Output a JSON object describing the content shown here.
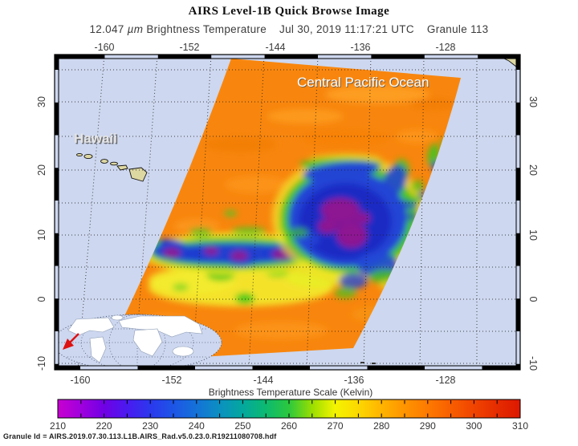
{
  "header": {
    "title": "AIRS Level-1B Quick Browse Image",
    "wavelength": "12.047",
    "unit": "µm",
    "measure": "Brightness Temperature",
    "datetime": "Jul 30, 2019 11:17:21 UTC",
    "granule": "Granule 113"
  },
  "map": {
    "labels": {
      "region": "Central Pacific Ocean",
      "place": "Hawaii"
    },
    "axes": {
      "top": [
        "-160",
        "-152",
        "-144",
        "-136",
        "-128"
      ],
      "bottom": [
        "-160",
        "-152",
        "-144",
        "-136",
        "-128"
      ],
      "left": [
        "30",
        "20",
        "10",
        "0",
        "-10"
      ],
      "right": [
        "30",
        "20",
        "10",
        "0",
        "-10"
      ]
    }
  },
  "colorbar": {
    "title": "Brightness Temperature Scale (Kelvin)",
    "ticks": [
      "210",
      "220",
      "230",
      "240",
      "250",
      "260",
      "270",
      "280",
      "290",
      "300",
      "310"
    ],
    "gradient": [
      {
        "o": 0.0,
        "c": "#c800d0"
      },
      {
        "o": 0.05,
        "c": "#a000dd"
      },
      {
        "o": 0.1,
        "c": "#7000e5"
      },
      {
        "o": 0.15,
        "c": "#4a1af0"
      },
      {
        "o": 0.2,
        "c": "#2b38ee"
      },
      {
        "o": 0.25,
        "c": "#1d55e6"
      },
      {
        "o": 0.3,
        "c": "#1472d8"
      },
      {
        "o": 0.35,
        "c": "#0b90c0"
      },
      {
        "o": 0.4,
        "c": "#04a89e"
      },
      {
        "o": 0.45,
        "c": "#0cba70"
      },
      {
        "o": 0.5,
        "c": "#2cc83e"
      },
      {
        "o": 0.55,
        "c": "#9ade00"
      },
      {
        "o": 0.6,
        "c": "#f4f400"
      },
      {
        "o": 0.65,
        "c": "#fcd800"
      },
      {
        "o": 0.7,
        "c": "#ffb400"
      },
      {
        "o": 0.75,
        "c": "#ff9400"
      },
      {
        "o": 0.8,
        "c": "#fd7a00"
      },
      {
        "o": 0.85,
        "c": "#f85e00"
      },
      {
        "o": 0.9,
        "c": "#f04400"
      },
      {
        "o": 0.95,
        "c": "#e52c00"
      },
      {
        "o": 1.0,
        "c": "#dd1800"
      }
    ]
  },
  "footer": {
    "granule_id": "Granule Id = AIRS.2019.07.30.113.L1B.AIRS_Rad.v5.0.23.0.R19211080708.hdf"
  },
  "colors": {
    "ocean": "#cdd7ef",
    "swath_warm_base": "#f8860e",
    "coldest_cloud_purple": "#8d1692",
    "cold_cloud_blue": "#2144d6",
    "cloud_green": "#3cc41d",
    "cloud_yellow": "#f2ea2c",
    "land_tan": "#ddd7a2",
    "locator_arrow_red": "#dd1111"
  },
  "chart_data": {
    "type": "heatmap",
    "title": "AIRS Level-1B Quick Browse Image",
    "subtitle": "12.047 µm Brightness Temperature, Jul 30, 2019 11:17:21 UTC, Granule 113",
    "x_axis": {
      "tick_labels": [
        -160,
        -152,
        -144,
        -136,
        -128
      ],
      "approx_range": [
        -165,
        -122
      ],
      "unit": "degrees longitude"
    },
    "y_axis": {
      "tick_labels": [
        30,
        20,
        10,
        0,
        -10
      ],
      "approx_range": [
        -11,
        37
      ],
      "unit": "degrees latitude"
    },
    "grid": "dotted graticule every 5 degrees",
    "colorbar": {
      "label": "Brightness Temperature Scale (Kelvin)",
      "range": [
        210,
        310
      ],
      "tick_values": [
        210,
        220,
        230,
        240,
        250,
        260,
        270,
        280,
        290,
        300,
        310
      ]
    },
    "annotations": [
      "Central Pacific Ocean",
      "Hawaii"
    ],
    "features": [
      "Diagonal AIRS satellite swath (parallelogram) from upper right to lower left, mostly warm 285-300 K (orange)",
      "Tropical cyclone with coldest cloud tops 210-220 K (purple core in blue mass, green/yellow fringe) centered near 12 N, 137 W",
      "East-west band of cold cloud tops (blue/purple with green-yellow edges) near 9 N between about 153 W and 138 W",
      "Yellow band around 270 K along the southern part of the swath near 4 N",
      "Hawaiian Islands shown on light-blue ocean background outside the swath",
      "Oval world locator inset at lower left with red arrow marking granule location"
    ]
  }
}
